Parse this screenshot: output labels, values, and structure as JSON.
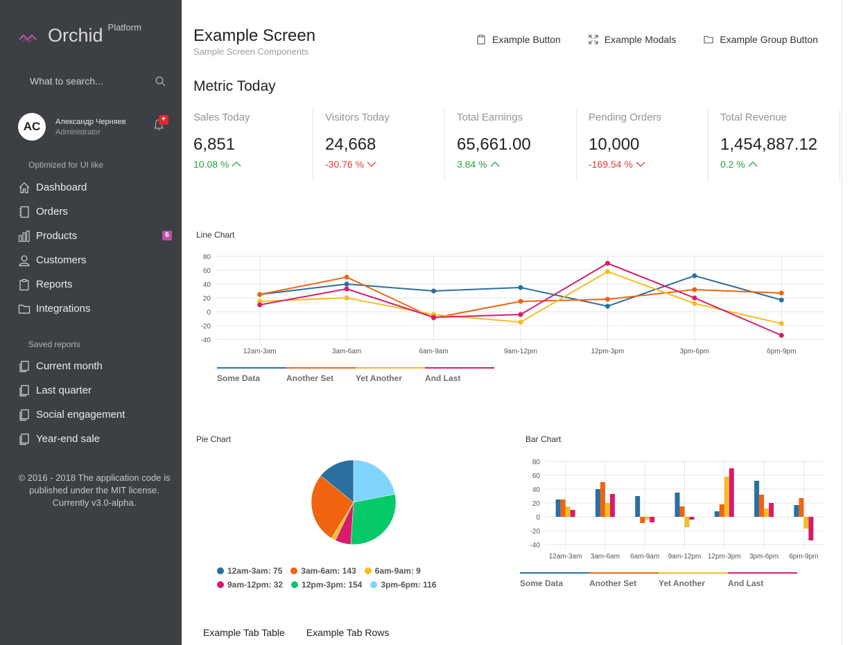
{
  "brand": {
    "name": "Orchid",
    "sub": "Platform"
  },
  "search": {
    "placeholder": "What to search..."
  },
  "profile": {
    "initials": "AC",
    "name": "Александр Черняев",
    "role": "Administrator",
    "bell_badge": "+"
  },
  "sidebar": {
    "section_main": "Optimized for UI like",
    "items": [
      {
        "label": "Dashboard",
        "icon": "home-icon"
      },
      {
        "label": "Orders",
        "icon": "notebook-icon"
      },
      {
        "label": "Products",
        "icon": "bar-chart-icon",
        "badge": "6"
      },
      {
        "label": "Customers",
        "icon": "user-icon"
      },
      {
        "label": "Reports",
        "icon": "clipboard-icon"
      },
      {
        "label": "Integrations",
        "icon": "folder-icon"
      }
    ],
    "section_saved": "Saved reports",
    "saved": [
      {
        "label": "Current month",
        "icon": "docs-icon"
      },
      {
        "label": "Last quarter",
        "icon": "docs-icon"
      },
      {
        "label": "Social engagement",
        "icon": "docs-icon"
      },
      {
        "label": "Year-end sale",
        "icon": "docs-icon"
      }
    ],
    "footer": "© 2016 - 2018 The application code is published under the MIT license. Currently v3.0-alpha."
  },
  "header": {
    "title": "Example Screen",
    "subtitle": "Sample Screen Components",
    "buttons": [
      "Example Button",
      "Example Modals",
      "Example Group Button"
    ]
  },
  "metrics": {
    "title": "Metric Today",
    "items": [
      {
        "label": "Sales Today",
        "value": "6,851",
        "delta": "10.08 %",
        "trend": "up"
      },
      {
        "label": "Visitors Today",
        "value": "24,668",
        "delta": "-30.76 %",
        "trend": "down"
      },
      {
        "label": "Total Earnings",
        "value": "65,661.00",
        "delta": "3.84 %",
        "trend": "up"
      },
      {
        "label": "Pending Orders",
        "value": "10,000",
        "delta": "-169.54 %",
        "trend": "down"
      },
      {
        "label": "Total Revenue",
        "value": "1,454,887.12",
        "delta": "0.2 %",
        "trend": "up"
      }
    ]
  },
  "colors": {
    "series": [
      "#2a6f9e",
      "#f0640f",
      "#f2be22",
      "#d81b6a"
    ],
    "pie": [
      "#2a6f9e",
      "#f0640f",
      "#f2be22",
      "#d81b6a",
      "#06c96a",
      "#7fd4fc"
    ]
  },
  "chart_data": [
    {
      "type": "line",
      "title": "Line Chart",
      "categories": [
        "12am-3am",
        "3am-6am",
        "6am-9am",
        "9am-12pm",
        "12pm-3pm",
        "3pm-6pm",
        "6pm-9pm"
      ],
      "ylim": [
        -40,
        80
      ],
      "yticks": [
        80,
        60,
        40,
        20,
        0,
        -20,
        -40
      ],
      "grid": true,
      "legend": "bottom-left",
      "series": [
        {
          "name": "Some Data",
          "values": [
            25,
            40,
            30,
            35,
            8,
            52,
            17
          ]
        },
        {
          "name": "Another Set",
          "values": [
            25,
            50,
            -9,
            15,
            18,
            32,
            27
          ]
        },
        {
          "name": "Yet Another",
          "values": [
            15,
            20,
            -4,
            -15,
            58,
            12,
            -17
          ]
        },
        {
          "name": "And Last",
          "values": [
            10,
            33,
            -8,
            -4,
            70,
            20,
            -34
          ]
        }
      ]
    },
    {
      "type": "pie",
      "title": "Pie Chart",
      "legend": "bottom",
      "slices": [
        {
          "label": "12am-3am",
          "value": 75
        },
        {
          "label": "3am-6am",
          "value": 143
        },
        {
          "label": "6am-9am",
          "value": 9
        },
        {
          "label": "9am-12pm",
          "value": 32
        },
        {
          "label": "12pm-3pm",
          "value": 154
        },
        {
          "label": "3pm-6pm",
          "value": 116
        }
      ]
    },
    {
      "type": "bar",
      "title": "Bar Chart",
      "categories": [
        "12am-3am",
        "3am-6am",
        "6am-9am",
        "9am-12pm",
        "12pm-3pm",
        "3pm-6pm",
        "6pm-9pm"
      ],
      "ylim": [
        -40,
        80
      ],
      "yticks": [
        80,
        60,
        40,
        20,
        0,
        -20,
        -40
      ],
      "grid": true,
      "legend": "bottom-left",
      "series": [
        {
          "name": "Some Data",
          "values": [
            25,
            40,
            30,
            35,
            8,
            52,
            17
          ]
        },
        {
          "name": "Another Set",
          "values": [
            25,
            50,
            -9,
            15,
            18,
            32,
            27
          ]
        },
        {
          "name": "Yet Another",
          "values": [
            15,
            20,
            -4,
            -15,
            58,
            12,
            -17
          ]
        },
        {
          "name": "And Last",
          "values": [
            10,
            33,
            -8,
            -4,
            70,
            20,
            -34
          ]
        }
      ]
    }
  ],
  "tabs": [
    "Example Tab Table",
    "Example Tab Rows"
  ]
}
